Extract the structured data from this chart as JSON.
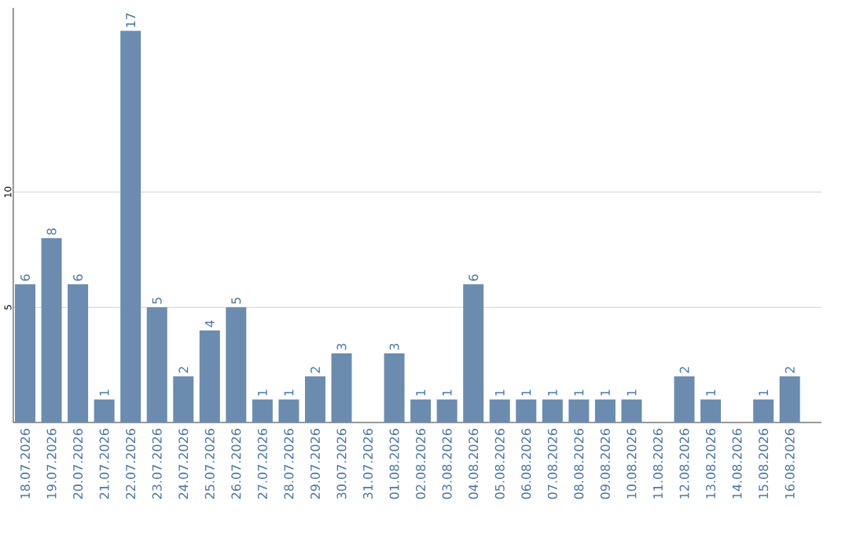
{
  "chart_data": {
    "type": "bar",
    "categories": [
      "18.07.2026",
      "19.07.2026",
      "20.07.2026",
      "21.07.2026",
      "22.07.2026",
      "23.07.2026",
      "24.07.2026",
      "25.07.2026",
      "26.07.2026",
      "27.07.2026",
      "28.07.2026",
      "29.07.2026",
      "30.07.2026",
      "31.07.2026",
      "01.08.2026",
      "02.08.2026",
      "03.08.2026",
      "04.08.2026",
      "05.08.2026",
      "06.08.2026",
      "07.08.2026",
      "08.08.2026",
      "09.08.2026",
      "10.08.2026",
      "11.08.2026",
      "12.08.2026",
      "13.08.2026",
      "14.08.2026",
      "15.08.2026",
      "16.08.2026"
    ],
    "values": [
      6,
      8,
      6,
      1,
      17,
      5,
      2,
      4,
      5,
      1,
      1,
      2,
      3,
      null,
      3,
      1,
      1,
      6,
      1,
      1,
      1,
      1,
      1,
      1,
      null,
      2,
      1,
      null,
      1,
      2
    ],
    "color": "#6b8cae",
    "value_labels": [
      "6",
      "8",
      "6",
      "1",
      "17",
      "5",
      "2",
      "4",
      "5",
      "1",
      "1",
      "2",
      "3",
      null,
      "3",
      "1",
      "1",
      "6",
      "1",
      "1",
      "1",
      "1",
      "1",
      "1",
      null,
      "2",
      "1",
      null,
      "1",
      "2"
    ],
    "ylim": [
      0,
      18
    ],
    "yticks": [
      5,
      10
    ],
    "grid": "y"
  }
}
